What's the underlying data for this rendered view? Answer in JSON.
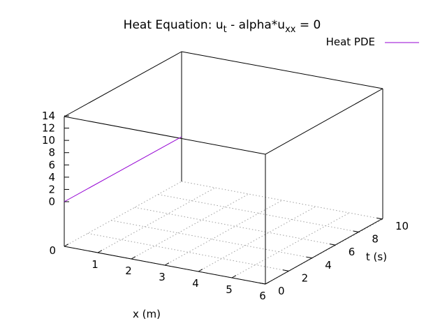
{
  "chart_data": {
    "type": "line",
    "title_main": "Heat Equation: u",
    "title_sub1": "t",
    "title_mid": " - alpha*u",
    "title_sub2": "xx",
    "title_end": " = 0",
    "xlabel": "x (m)",
    "ylabel": "t (s)",
    "zlabel": "",
    "xlim": [
      0,
      6
    ],
    "ylim": [
      0,
      10
    ],
    "zlim": [
      0,
      14
    ],
    "x_ticks": [
      "0",
      "1",
      "2",
      "3",
      "4",
      "5",
      "6"
    ],
    "y_ticks": [
      "0",
      "2",
      "4",
      "6",
      "8",
      "10"
    ],
    "z_ticks": [
      "0",
      "2",
      "4",
      "6",
      "8",
      "10",
      "12",
      "14"
    ],
    "z_base_label": "0",
    "grid": true,
    "legend": {
      "position": "top-right",
      "entry": "Heat PDE",
      "color": "#9400d3"
    },
    "series": [
      {
        "name": "Heat PDE",
        "color": "#9400d3",
        "points": [
          {
            "x": 0,
            "t": 0,
            "u": 0
          },
          {
            "x": 0,
            "t": 10,
            "u": 0
          }
        ]
      }
    ]
  }
}
